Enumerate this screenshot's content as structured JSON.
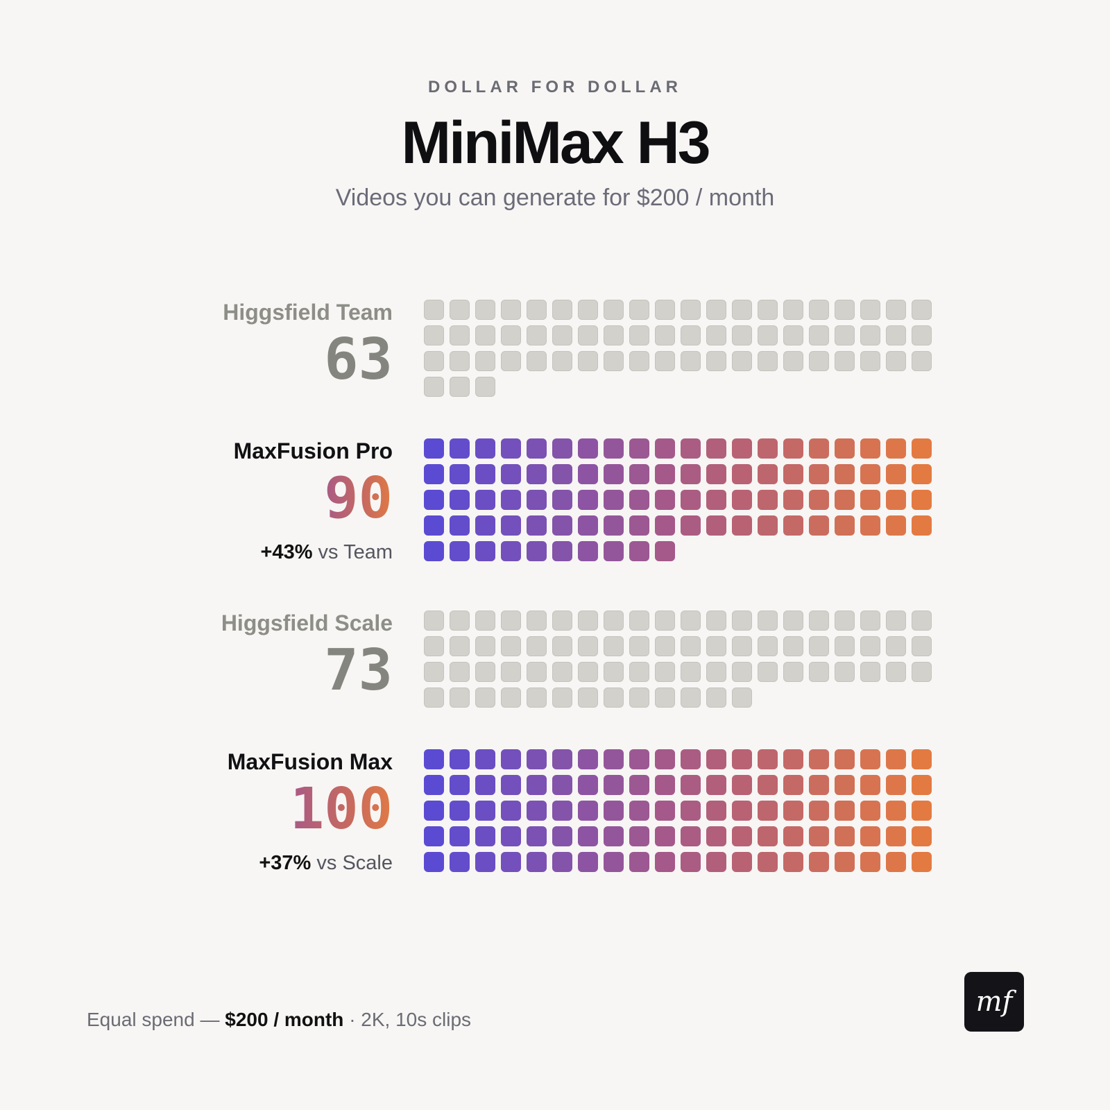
{
  "header": {
    "eyebrow": "DOLLAR FOR DOLLAR",
    "title": "MiniMax H3",
    "subtitle": "Videos you can generate for $200 / month"
  },
  "chart_data": {
    "type": "waffle",
    "title": "MiniMax H3",
    "subtitle": "Videos you can generate for $200 / month",
    "units_per_row": 20,
    "series": [
      {
        "name": "Higgsfield Team",
        "value": 63,
        "style": "grey"
      },
      {
        "name": "MaxFusion Pro",
        "value": 90,
        "style": "gradient",
        "delta_pct": "+43%",
        "delta_text": " vs Team"
      },
      {
        "name": "Higgsfield Scale",
        "value": 73,
        "style": "grey"
      },
      {
        "name": "MaxFusion Max",
        "value": 100,
        "style": "gradient",
        "delta_pct": "+37%",
        "delta_text": " vs Scale"
      }
    ],
    "colors": {
      "grey": "#d2d1cc",
      "gradient_start": "#5b4bd3",
      "gradient_mid": "#a85a86",
      "gradient_end": "#e37a42"
    }
  },
  "footer": {
    "prefix": "Equal spend — ",
    "spend": "$200 / month",
    "suffix": " · 2K, 10s clips"
  },
  "logo": {
    "text": "mf"
  }
}
